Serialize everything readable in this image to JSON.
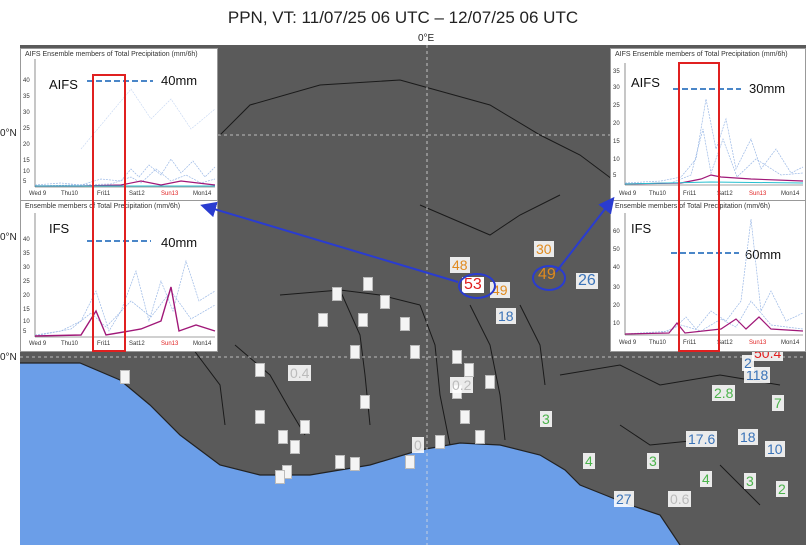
{
  "title": "PPN, VT: 11/07/25 06 UTC – 12/07/25 06 UTC",
  "longitude_label": "0°E",
  "latitude_labels": [
    "0°N",
    "0°N",
    "0°N"
  ],
  "colors": {
    "land": "#5a5a5a",
    "ocean": "#6b9ee8",
    "highlight_circle": "#2a3cd0",
    "forecast_box": "#e02020"
  },
  "panels": {
    "left_aifs": {
      "title": "AIFS Ensemble members of Total Precipitation (mm/6h)",
      "model": "AIFS",
      "threshold": "40mm",
      "yticks": [
        "40",
        "35",
        "30",
        "25",
        "20",
        "15",
        "10",
        "5"
      ],
      "xticks": [
        "Wed 9",
        "Thu10",
        "Fri11",
        "Sat12",
        "Sun13",
        "Mon14"
      ]
    },
    "left_ifs": {
      "title": "Ensemble members of Total Precipitation (mm/6h)",
      "model": "IFS",
      "threshold": "40mm",
      "yticks": [
        "40",
        "35",
        "30",
        "25",
        "20",
        "15",
        "10",
        "5"
      ],
      "xticks": [
        "Wed 9",
        "Thu10",
        "Fri11",
        "Sat12",
        "Sun13",
        "Mon14"
      ]
    },
    "right_aifs": {
      "title": "AIFS Ensemble members of Total Precipitation (mm/6h)",
      "model": "AIFS",
      "threshold": "30mm",
      "yticks": [
        "35",
        "30",
        "25",
        "20",
        "15",
        "10",
        "5"
      ],
      "xticks": [
        "Wed 9",
        "Thu10",
        "Fri11",
        "Sat12",
        "Sun13",
        "Mon14"
      ]
    },
    "right_ifs": {
      "title": "Ensemble members of Total Precipitation (mm/6h)",
      "model": "IFS",
      "threshold": "60mm",
      "yticks": [
        "60",
        "50",
        "40",
        "30",
        "20",
        "10"
      ],
      "xticks": [
        "Wed 9",
        "Thu10",
        "Fri11",
        "Sat12",
        "Sun13",
        "Mon14"
      ]
    }
  },
  "observations": {
    "v48": "48",
    "v53": "53",
    "v49a": "49",
    "v30": "30",
    "v49b": "49",
    "v26": "26",
    "v18": "18",
    "v04": "0.4",
    "v02": "0.2",
    "v0": "0",
    "v3a": "3",
    "v3b": "3",
    "v4a": "4",
    "v4b": "4",
    "v3c": "3",
    "v3d": "3",
    "v2": "2",
    "v28": "2.8",
    "v176": "17.6",
    "v18b": "18",
    "v10": "10",
    "v27": "27",
    "v06": "0.6",
    "v504": "50.4",
    "v118": "118",
    "v2b": "2",
    "v7": "7"
  }
}
